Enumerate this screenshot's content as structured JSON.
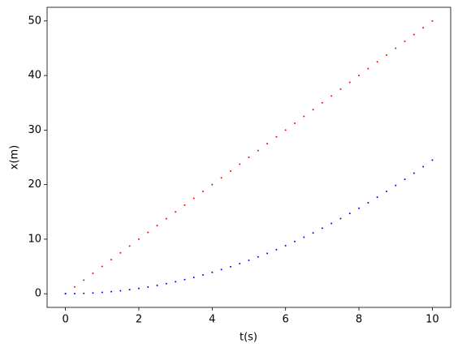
{
  "chart_data": {
    "type": "scatter",
    "xlabel": "t(s)",
    "ylabel": "x(m)",
    "x": [
      0,
      0.25,
      0.5,
      0.75,
      1,
      1.25,
      1.5,
      1.75,
      2,
      2.25,
      2.5,
      2.75,
      3,
      3.25,
      3.5,
      3.75,
      4,
      4.25,
      4.5,
      4.75,
      5,
      5.25,
      5.5,
      5.75,
      6,
      6.25,
      6.5,
      6.75,
      7,
      7.25,
      7.5,
      7.75,
      8,
      8.25,
      8.5,
      8.75,
      9,
      9.25,
      9.5,
      9.75,
      10
    ],
    "series": [
      {
        "color": "red",
        "values": [
          0,
          1.25,
          2.5,
          3.75,
          5,
          6.25,
          7.5,
          8.75,
          10,
          11.25,
          12.5,
          13.75,
          15,
          16.25,
          17.5,
          18.75,
          20,
          21.25,
          22.5,
          23.75,
          25,
          26.25,
          27.5,
          28.75,
          30,
          31.25,
          32.5,
          33.75,
          35,
          36.25,
          37.5,
          38.75,
          40,
          41.25,
          42.5,
          43.75,
          45,
          46.25,
          47.5,
          48.75,
          50
        ]
      },
      {
        "color": "blue",
        "values": [
          0,
          0.02,
          0.06,
          0.14,
          0.25,
          0.38,
          0.55,
          0.75,
          0.98,
          1.24,
          1.53,
          1.85,
          2.21,
          2.59,
          3,
          3.45,
          3.92,
          4.43,
          4.96,
          5.53,
          6.13,
          6.75,
          7.41,
          8.1,
          8.82,
          9.57,
          10.35,
          11.16,
          12.01,
          12.88,
          13.78,
          14.72,
          15.68,
          16.68,
          17.7,
          18.76,
          19.85,
          20.96,
          22.11,
          23.29,
          24.5
        ]
      }
    ],
    "xlim": [
      -0.5,
      10.5
    ],
    "ylim": [
      -2.5,
      52.5
    ],
    "xticks": [
      0,
      2,
      4,
      6,
      8,
      10
    ],
    "yticks": [
      0,
      10,
      20,
      30,
      40,
      50
    ]
  }
}
